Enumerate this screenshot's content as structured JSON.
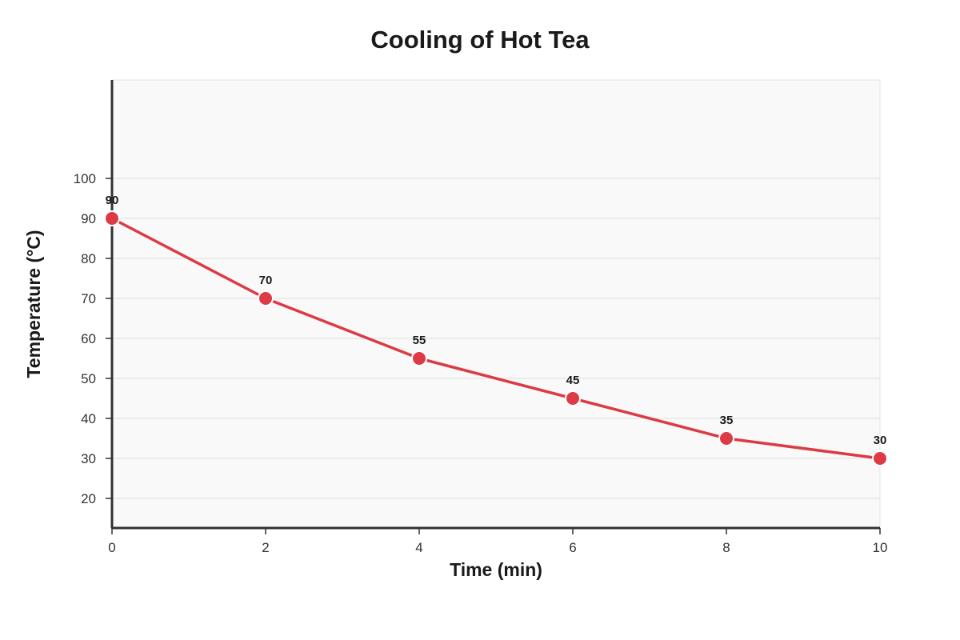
{
  "chart_data": {
    "type": "line",
    "title": "Cooling of Hot Tea",
    "xlabel": "Time (min)",
    "ylabel": "Temperature (°C)",
    "x": [
      0,
      2,
      4,
      6,
      8,
      10
    ],
    "series": [
      {
        "values": [
          90,
          70,
          55,
          45,
          35,
          30
        ],
        "color": "#dc3b45"
      }
    ],
    "data_labels": [
      "90",
      "70",
      "55",
      "45",
      "35",
      "30"
    ],
    "x_ticks": [
      0,
      2,
      4,
      6,
      8,
      10
    ],
    "x_tick_labels": [
      "0",
      "2",
      "4",
      "6",
      "8",
      "10"
    ],
    "y_ticks": [
      20,
      30,
      40,
      50,
      60,
      70,
      80,
      90,
      100
    ],
    "y_tick_labels": [
      "20",
      "30",
      "40",
      "50",
      "60",
      "70",
      "80",
      "90",
      "100"
    ],
    "xlim": [
      0,
      10
    ],
    "ylim": [
      12.6,
      124.6
    ],
    "grid": true,
    "legend": "none",
    "colors": {
      "plot_background": "#f9f9f9",
      "grid": "#dedede",
      "axis": "#333333"
    }
  }
}
